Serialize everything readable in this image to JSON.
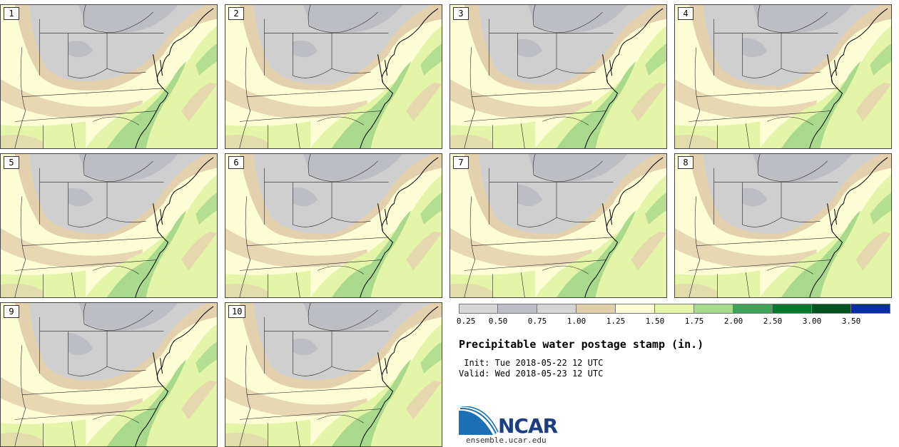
{
  "panels": [
    {
      "label": "1"
    },
    {
      "label": "2"
    },
    {
      "label": "3"
    },
    {
      "label": "4"
    },
    {
      "label": "5"
    },
    {
      "label": "6"
    },
    {
      "label": "7"
    },
    {
      "label": "8"
    },
    {
      "label": "9"
    },
    {
      "label": "10"
    }
  ],
  "colorbar": {
    "colors": [
      "#d7d7d7",
      "#bebec8",
      "#d4d4d4",
      "#e0cda9",
      "#fdfdd6",
      "#e6f5a8",
      "#a9db8e",
      "#3fa45a",
      "#00782e",
      "#00521f",
      "#0a2ea8"
    ],
    "ticks": [
      "0.25",
      "0.50",
      "0.75",
      "1.00",
      "1.25",
      "1.50",
      "1.75",
      "2.00",
      "2.50",
      "3.00",
      "3.50"
    ]
  },
  "title": "Precipitable water postage stamp (in.)",
  "init": " Init: Tue 2018-05-22 12 UTC",
  "valid": "Valid: Wed 2018-05-23 12 UTC",
  "logo": {
    "name": "NCAR",
    "url": "ensemble.ucar.edu",
    "colors": {
      "swoosh": "#1a6fb5",
      "text": "#1d3f82"
    }
  },
  "map_colors": {
    "dry": "#cfcfcf",
    "drier": "#bdbdc4",
    "tan": "#e3d1ad",
    "pale": "#fdfdd6",
    "light_green": "#e4f4a8",
    "green": "#a8d98c",
    "dark_green": "#3fa45a"
  }
}
